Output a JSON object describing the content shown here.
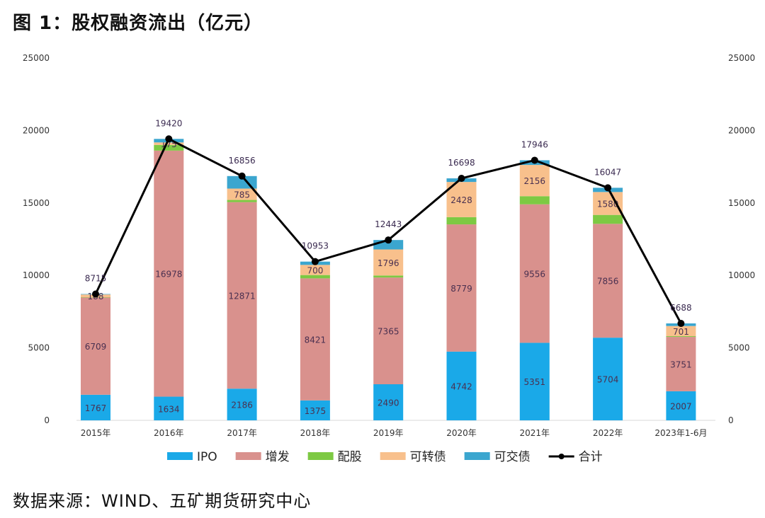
{
  "chart_data": {
    "type": "bar",
    "stacked": true,
    "title": "图 1：股权融资流出（亿元）",
    "source": "数据来源：WIND、五矿期货研究中心",
    "categories": [
      "2015年",
      "2016年",
      "2017年",
      "2018年",
      "2019年",
      "2020年",
      "2021年",
      "2022年",
      "2023年1-6月"
    ],
    "ylim": [
      0,
      25000
    ],
    "yticks": [
      0,
      5000,
      10000,
      15000,
      20000,
      25000
    ],
    "secondary_yticks": [
      0,
      5000,
      10000,
      15000,
      20000,
      25000
    ],
    "grid": false,
    "legend_position": "bottom",
    "series": [
      {
        "name": "IPO",
        "color": "#1AA9E8",
        "values": [
          1767,
          1634,
          2186,
          1375,
          2490,
          4742,
          5351,
          5704,
          2007
        ],
        "labels": [
          "1767",
          "1634",
          "2186",
          "1375",
          "2490",
          "4742",
          "5351",
          "5704",
          "2007"
        ]
      },
      {
        "name": "增发",
        "color": "#D9918D",
        "values": [
          6709,
          16978,
          12871,
          8421,
          7365,
          8779,
          9556,
          7856,
          3751
        ],
        "labels": [
          "6709",
          "16978",
          "12871",
          "8421",
          "7365",
          "8779",
          "9556",
          "7856",
          "3751"
        ]
      },
      {
        "name": "配股",
        "color": "#7DC943",
        "values": [
          20,
          390,
          150,
          230,
          140,
          500,
          560,
          615,
          50
        ],
        "labels": [
          "",
          "",
          "",
          "",
          "",
          "",
          "",
          "",
          ""
        ]
      },
      {
        "name": "可转债",
        "color": "#F8C08C",
        "values": [
          188,
          175,
          785,
          700,
          1796,
          2428,
          2156,
          1580,
          701
        ],
        "labels": [
          "188",
          "175",
          "785",
          "700",
          "1796",
          "2428",
          "2156",
          "1580",
          "701"
        ]
      },
      {
        "name": "可交债",
        "color": "#3BA6CF",
        "values": [
          31,
          243,
          864,
          227,
          652,
          249,
          323,
          292,
          179
        ],
        "labels": [
          "",
          "",
          "",
          "",
          "",
          "",
          "",
          "",
          ""
        ]
      }
    ],
    "line_series": {
      "name": "合计",
      "color": "#000000",
      "values": [
        8715,
        19420,
        16856,
        10953,
        12443,
        16698,
        17946,
        16047,
        6688
      ],
      "labels": [
        "8715",
        "19420",
        "16856",
        "10953",
        "12443",
        "16698",
        "17946",
        "16047",
        "6688"
      ]
    }
  }
}
